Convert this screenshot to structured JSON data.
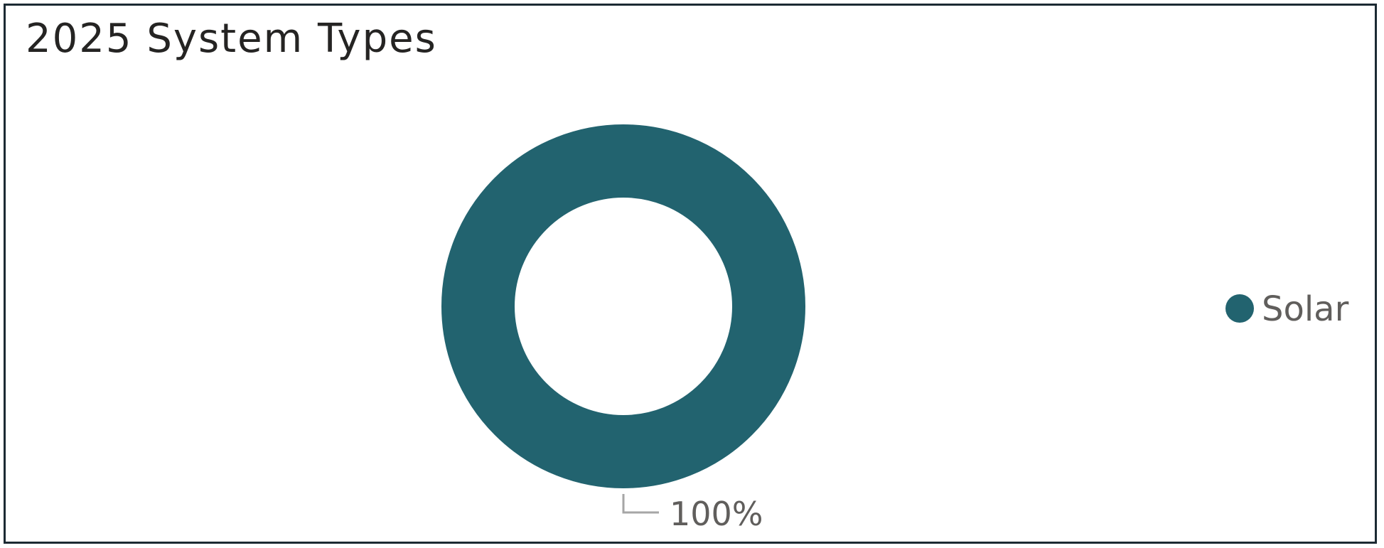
{
  "chart_data": {
    "type": "pie",
    "title": "2025 System Types",
    "donut": true,
    "categories": [
      "Solar"
    ],
    "values": [
      100
    ],
    "data_labels": [
      "100%"
    ],
    "colors": [
      "#22636f"
    ],
    "legend": {
      "position": "right",
      "entries": [
        "Solar"
      ]
    }
  }
}
